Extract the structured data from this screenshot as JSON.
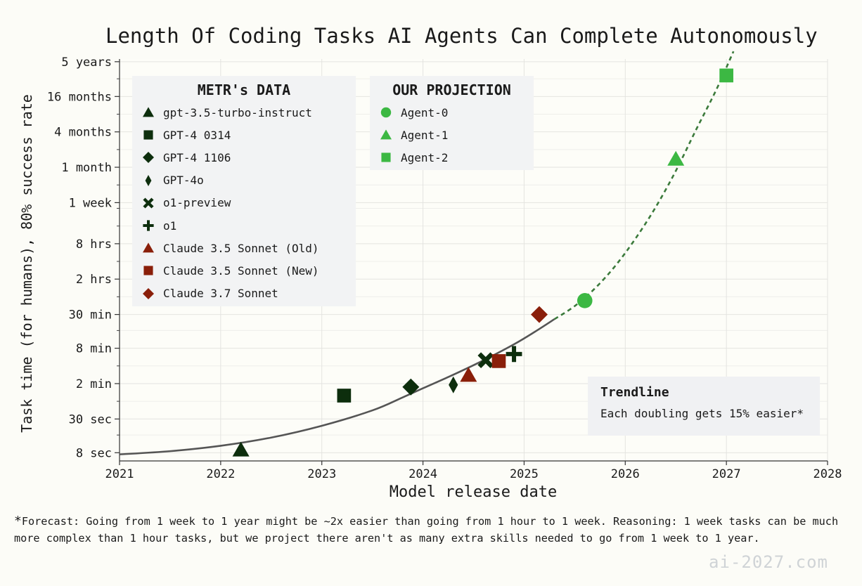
{
  "chart_data": {
    "type": "scatter",
    "title": "Length Of Coding Tasks AI Agents Can Complete Autonomously",
    "xlabel": "Model release date",
    "ylabel": "Task time (for humans), 80% success rate",
    "x_ticks": [
      "2021",
      "2022",
      "2023",
      "2024",
      "2025",
      "2026",
      "2027",
      "2028"
    ],
    "xlim": [
      2021,
      2028
    ],
    "y_scale": "log2",
    "y_ticks": [
      {
        "label": "8 sec",
        "seconds": 8
      },
      {
        "label": "30 sec",
        "seconds": 30
      },
      {
        "label": "2 min",
        "seconds": 120
      },
      {
        "label": "8 min",
        "seconds": 480
      },
      {
        "label": "30 min",
        "seconds": 1800
      },
      {
        "label": "2 hrs",
        "seconds": 7200
      },
      {
        "label": "8 hrs",
        "seconds": 28800
      },
      {
        "label": "1 week",
        "seconds": 144000
      },
      {
        "label": "1 month",
        "seconds": 576000
      },
      {
        "label": "4 months",
        "seconds": 2304000
      },
      {
        "label": "16 months",
        "seconds": 9216000
      },
      {
        "label": "5 years",
        "seconds": 36000000
      }
    ],
    "ylim_seconds": [
      5.8,
      40000000
    ],
    "series": [
      {
        "name": "gpt-3.5-turbo-instruct",
        "group": "metr",
        "marker": "triangle",
        "color": "#0d2e0d",
        "points": [
          {
            "x": 2022.2,
            "y_seconds": 9
          }
        ]
      },
      {
        "name": "GPT-4 0314",
        "group": "metr",
        "marker": "square",
        "color": "#0d2e0d",
        "points": [
          {
            "x": 2023.22,
            "y_seconds": 75
          }
        ]
      },
      {
        "name": "GPT-4 1106",
        "group": "metr",
        "marker": "diamond",
        "color": "#0d2e0d",
        "points": [
          {
            "x": 2023.88,
            "y_seconds": 105
          }
        ]
      },
      {
        "name": "GPT-4o",
        "group": "metr",
        "marker": "thin-diamond",
        "color": "#0d2e0d",
        "points": [
          {
            "x": 2024.3,
            "y_seconds": 114
          }
        ]
      },
      {
        "name": "o1-preview",
        "group": "metr",
        "marker": "x",
        "color": "#0d2e0d",
        "points": [
          {
            "x": 2024.62,
            "y_seconds": 300
          }
        ]
      },
      {
        "name": "o1",
        "group": "metr",
        "marker": "plus",
        "color": "#0d2e0d",
        "points": [
          {
            "x": 2024.9,
            "y_seconds": 382
          }
        ]
      },
      {
        "name": "Claude 3.5 Sonnet (Old)",
        "group": "metr",
        "marker": "triangle",
        "color": "#8a1f0a",
        "points": [
          {
            "x": 2024.45,
            "y_seconds": 168
          }
        ]
      },
      {
        "name": "Claude 3.5 Sonnet (New)",
        "group": "metr",
        "marker": "square",
        "color": "#8a1f0a",
        "points": [
          {
            "x": 2024.75,
            "y_seconds": 290
          }
        ]
      },
      {
        "name": "Claude 3.7 Sonnet",
        "group": "metr",
        "marker": "diamond",
        "color": "#8a1f0a",
        "points": [
          {
            "x": 2025.15,
            "y_seconds": 1800
          }
        ]
      },
      {
        "name": "Agent-0",
        "group": "projection",
        "marker": "circle",
        "color": "#3cb843",
        "points": [
          {
            "x": 2025.6,
            "y_seconds": 3100
          }
        ]
      },
      {
        "name": "Agent-1",
        "group": "projection",
        "marker": "triangle",
        "color": "#3cb843",
        "points": [
          {
            "x": 2026.5,
            "y_seconds": 800000
          }
        ]
      },
      {
        "name": "Agent-2",
        "group": "projection",
        "marker": "square",
        "color": "#3cb843",
        "points": [
          {
            "x": 2027.0,
            "y_seconds": 21000000
          }
        ]
      }
    ],
    "trendline": {
      "solid": [
        [
          2021,
          7.5
        ],
        [
          2021.5,
          8.5
        ],
        [
          2022,
          10.5
        ],
        [
          2022.5,
          14.5
        ],
        [
          2023,
          23
        ],
        [
          2023.5,
          42
        ],
        [
          2023.8,
          70
        ],
        [
          2024.0,
          100
        ],
        [
          2024.3,
          170
        ],
        [
          2024.6,
          300
        ],
        [
          2024.9,
          560
        ],
        [
          2025.1,
          900
        ],
        [
          2025.3,
          1500
        ]
      ],
      "dashed": [
        [
          2025.3,
          1500
        ],
        [
          2025.5,
          2500
        ],
        [
          2025.7,
          5000
        ],
        [
          2025.9,
          12000
        ],
        [
          2026.1,
          35000
        ],
        [
          2026.3,
          120000
        ],
        [
          2026.5,
          500000
        ],
        [
          2026.7,
          2500000
        ],
        [
          2026.9,
          12000000
        ],
        [
          2027.07,
          54000000
        ]
      ],
      "solid_color": "#555555",
      "dashed_color": "#3b7a3b"
    },
    "legends": {
      "metr_title": "METR's DATA",
      "projection_title": "OUR PROJECTION"
    },
    "annotation": {
      "title": "Trendline",
      "text": "Each doubling gets 15% easier*"
    }
  },
  "footnote": {
    "marker": "*",
    "text": "Forecast: Going from 1 week to 1 year might be ~2x easier than going from 1 hour to 1 week. Reasoning: 1 week tasks can be much more complex than 1 hour tasks, but we project there aren't as many extra skills needed to go from 1 week to 1 year."
  },
  "watermark": "ai-2027.com"
}
